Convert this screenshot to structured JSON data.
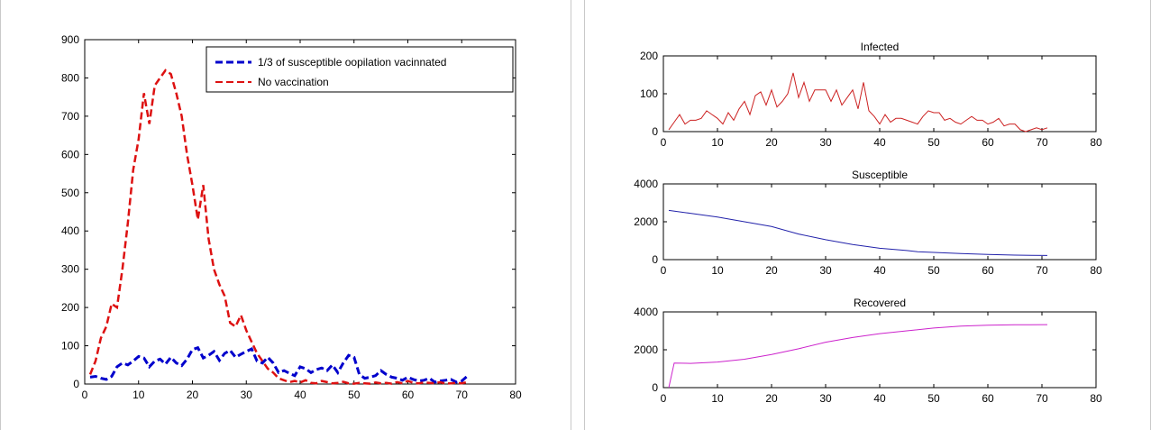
{
  "chart_data": [
    {
      "type": "line",
      "title": "",
      "xlabel": "",
      "ylabel": "",
      "xlim": [
        0,
        80
      ],
      "ylim": [
        0,
        900
      ],
      "xticks": [
        "0",
        "10",
        "20",
        "30",
        "40",
        "50",
        "60",
        "70",
        "80"
      ],
      "yticks": [
        "0",
        "100",
        "200",
        "300",
        "400",
        "500",
        "600",
        "700",
        "800",
        "900"
      ],
      "grid": false,
      "legend": "top-right",
      "series": [
        {
          "name": "1/3 of susceptible oopilation vacinnated",
          "color": "#0000cc",
          "style": "dashed-thick",
          "x": [
            1,
            2,
            3,
            4,
            5,
            6,
            7,
            8,
            9,
            10,
            11,
            12,
            13,
            14,
            15,
            16,
            17,
            18,
            19,
            20,
            21,
            22,
            23,
            24,
            25,
            26,
            27,
            28,
            29,
            30,
            31,
            32,
            33,
            34,
            35,
            36,
            37,
            38,
            39,
            40,
            41,
            42,
            43,
            44,
            45,
            46,
            47,
            48,
            49,
            50,
            51,
            52,
            53,
            54,
            55,
            56,
            57,
            58,
            59,
            60,
            61,
            62,
            63,
            64,
            65,
            66,
            67,
            68,
            69,
            70,
            71
          ],
          "y": [
            18,
            20,
            15,
            12,
            20,
            45,
            55,
            50,
            60,
            72,
            68,
            45,
            60,
            65,
            52,
            70,
            55,
            48,
            65,
            90,
            95,
            68,
            75,
            85,
            62,
            80,
            88,
            70,
            78,
            85,
            92,
            60,
            55,
            70,
            55,
            30,
            35,
            28,
            22,
            45,
            40,
            30,
            38,
            42,
            35,
            50,
            30,
            55,
            75,
            70,
            25,
            15,
            18,
            22,
            35,
            25,
            18,
            15,
            10,
            18,
            12,
            8,
            10,
            15,
            5,
            8,
            10,
            12,
            5,
            8,
            20
          ]
        },
        {
          "name": "No vaccination",
          "color": "#dd1111",
          "style": "dashed",
          "x": [
            1,
            2,
            3,
            4,
            5,
            6,
            7,
            8,
            9,
            10,
            11,
            12,
            13,
            14,
            15,
            16,
            17,
            18,
            19,
            20,
            21,
            22,
            23,
            24,
            25,
            26,
            27,
            28,
            29,
            30,
            31,
            32,
            33,
            34,
            35,
            36,
            37,
            38,
            39,
            40,
            41,
            42,
            43,
            44,
            45,
            46,
            47,
            48,
            49,
            50,
            51,
            52,
            53,
            54,
            55,
            56,
            57,
            58,
            59,
            60,
            61,
            62,
            63,
            64,
            65,
            66,
            67,
            68,
            69,
            70,
            71
          ],
          "y": [
            25,
            60,
            120,
            150,
            210,
            200,
            300,
            420,
            560,
            640,
            760,
            680,
            780,
            800,
            820,
            810,
            760,
            700,
            600,
            520,
            430,
            520,
            380,
            300,
            260,
            230,
            160,
            150,
            180,
            140,
            110,
            80,
            60,
            40,
            30,
            15,
            10,
            5,
            8,
            4,
            10,
            3,
            2,
            8,
            5,
            2,
            3,
            6,
            2,
            1,
            3,
            2,
            1,
            4,
            2,
            3,
            1,
            5,
            2,
            8,
            3,
            2,
            4,
            3,
            2,
            5,
            1,
            2,
            3,
            2,
            5
          ]
        }
      ]
    },
    {
      "type": "line",
      "title": "Infected",
      "xlim": [
        0,
        80
      ],
      "ylim": [
        0,
        200
      ],
      "xticks": [
        "0",
        "10",
        "20",
        "30",
        "40",
        "50",
        "60",
        "70",
        "80"
      ],
      "yticks": [
        "0",
        "100",
        "200"
      ],
      "grid": false,
      "series": [
        {
          "color": "#cc2222",
          "x": [
            1,
            2,
            3,
            4,
            5,
            6,
            7,
            8,
            9,
            10,
            11,
            12,
            13,
            14,
            15,
            16,
            17,
            18,
            19,
            20,
            21,
            22,
            23,
            24,
            25,
            26,
            27,
            28,
            29,
            30,
            31,
            32,
            33,
            34,
            35,
            36,
            37,
            38,
            39,
            40,
            41,
            42,
            43,
            44,
            45,
            46,
            47,
            48,
            49,
            50,
            51,
            52,
            53,
            54,
            55,
            56,
            57,
            58,
            59,
            60,
            61,
            62,
            63,
            64,
            65,
            66,
            67,
            68,
            69,
            70,
            71
          ],
          "y": [
            5,
            25,
            45,
            20,
            30,
            30,
            35,
            55,
            45,
            35,
            20,
            50,
            30,
            60,
            80,
            45,
            95,
            105,
            70,
            110,
            65,
            80,
            100,
            155,
            90,
            130,
            80,
            110,
            110,
            110,
            80,
            110,
            70,
            90,
            110,
            60,
            130,
            55,
            40,
            20,
            45,
            25,
            35,
            35,
            30,
            25,
            20,
            40,
            55,
            50,
            50,
            30,
            35,
            25,
            20,
            30,
            40,
            30,
            30,
            20,
            25,
            35,
            15,
            20,
            20,
            5,
            0,
            5,
            10,
            5,
            10
          ]
        }
      ]
    },
    {
      "type": "line",
      "title": "Susceptible",
      "xlim": [
        0,
        80
      ],
      "ylim": [
        0,
        4000
      ],
      "xticks": [
        "0",
        "10",
        "20",
        "30",
        "40",
        "50",
        "60",
        "70",
        "80"
      ],
      "yticks": [
        "0",
        "2000",
        "4000"
      ],
      "grid": false,
      "series": [
        {
          "color": "#2222aa",
          "x": [
            1,
            5,
            10,
            15,
            20,
            25,
            30,
            35,
            40,
            45,
            47,
            50,
            55,
            60,
            65,
            71
          ],
          "y": [
            2600,
            2450,
            2250,
            2000,
            1750,
            1350,
            1050,
            800,
            600,
            480,
            420,
            380,
            320,
            270,
            240,
            220
          ]
        }
      ]
    },
    {
      "type": "line",
      "title": "Recovered",
      "xlim": [
        0,
        80
      ],
      "ylim": [
        0,
        4000
      ],
      "xticks": [
        "0",
        "10",
        "20",
        "30",
        "40",
        "50",
        "60",
        "70",
        "80"
      ],
      "yticks": [
        "0",
        "2000",
        "4000"
      ],
      "grid": false,
      "series": [
        {
          "color": "#cc22cc",
          "x": [
            1,
            2,
            5,
            10,
            15,
            20,
            25,
            30,
            35,
            40,
            45,
            50,
            55,
            60,
            65,
            71
          ],
          "y": [
            0,
            1300,
            1280,
            1350,
            1500,
            1750,
            2050,
            2400,
            2650,
            2850,
            3000,
            3150,
            3250,
            3300,
            3320,
            3330
          ]
        }
      ]
    }
  ]
}
